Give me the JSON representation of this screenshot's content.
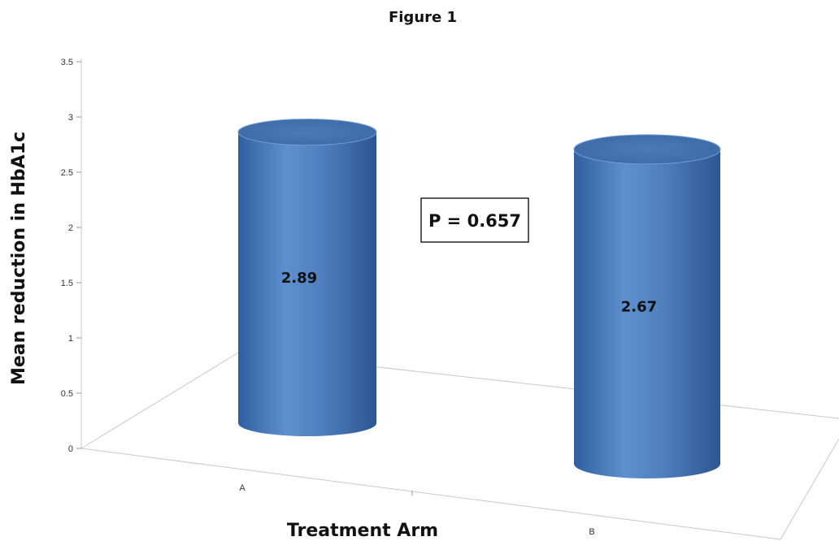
{
  "chart_data": {
    "type": "bar",
    "style": "3d-cylinder",
    "title": "Figure 1",
    "xlabel": "Treatment Arm",
    "ylabel": "Mean reduction in HbA1c",
    "categories": [
      "A",
      "B"
    ],
    "values": [
      2.89,
      2.67
    ],
    "data_labels": [
      "2.89",
      "2.67"
    ],
    "ylim": [
      0,
      3.5
    ],
    "yticks": [
      "0",
      "0.5",
      "1",
      "1.5",
      "2",
      "2.5",
      "3",
      "3.5"
    ],
    "annotation": "P = 0.657",
    "bar_color": "#4f7fc0",
    "grid": false,
    "legend": "none"
  }
}
